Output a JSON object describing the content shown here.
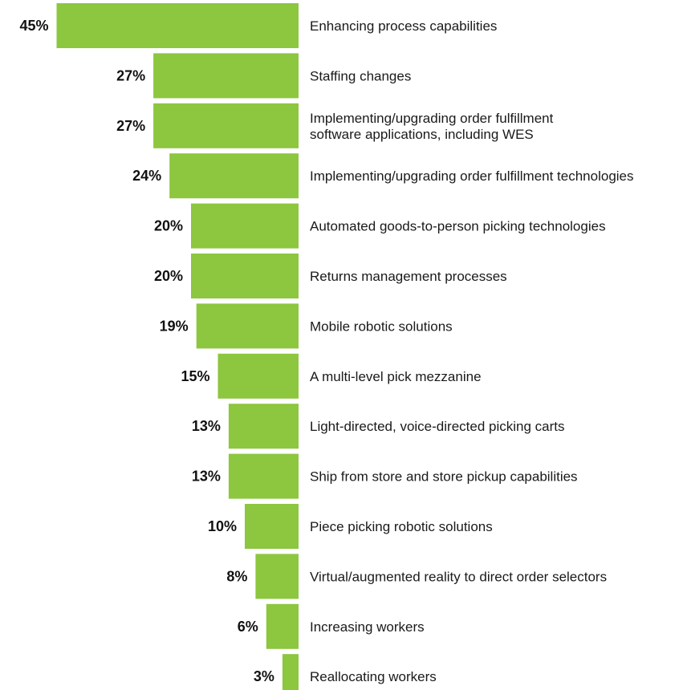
{
  "chart_data": {
    "type": "bar",
    "orientation": "horizontal",
    "categories": [
      "Enhancing process capabilities",
      "Staffing changes",
      "Implementing/upgrading order fulfillment software applications, including WES",
      "Implementing/upgrading order fulfillment technologies",
      "Automated goods-to-person picking technologies",
      "Returns management processes",
      "Mobile robotic solutions",
      "A multi-level pick mezzanine",
      "Light-directed, voice-directed picking carts",
      "Ship from store and store pickup capabilities",
      "Piece picking robotic solutions",
      "Virtual/augmented reality to direct order selectors",
      "Increasing workers",
      "Reallocating workers"
    ],
    "category_lines": [
      [
        "Enhancing process capabilities"
      ],
      [
        "Staffing changes"
      ],
      [
        "Implementing/upgrading order fulfillment",
        "software applications, including WES"
      ],
      [
        "Implementing/upgrading order fulfillment technologies"
      ],
      [
        "Automated goods-to-person picking technologies"
      ],
      [
        "Returns management processes"
      ],
      [
        "Mobile robotic solutions"
      ],
      [
        "A multi-level pick mezzanine"
      ],
      [
        "Light-directed, voice-directed picking carts"
      ],
      [
        "Ship from store and store pickup capabilities"
      ],
      [
        "Piece picking robotic solutions"
      ],
      [
        "Virtual/augmented reality to direct order selectors"
      ],
      [
        "Increasing workers"
      ],
      [
        "Reallocating workers"
      ]
    ],
    "values": [
      45,
      27,
      27,
      24,
      20,
      20,
      19,
      15,
      13,
      13,
      10,
      8,
      6,
      3
    ],
    "value_labels": [
      "45%",
      "27%",
      "27%",
      "24%",
      "20%",
      "20%",
      "19%",
      "15%",
      "13%",
      "13%",
      "10%",
      "8%",
      "6%",
      "3%"
    ],
    "unit": "%",
    "bar_color": "#8dc63f",
    "bar_direction": "right-aligned, extending left",
    "grid": false,
    "legend": "none"
  }
}
